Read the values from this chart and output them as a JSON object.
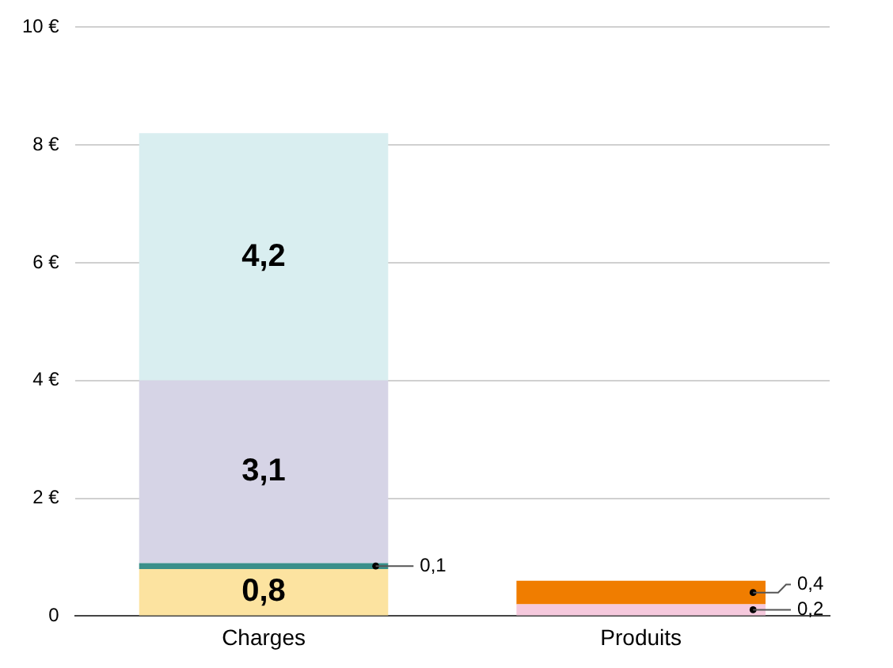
{
  "chart_data": {
    "type": "bar",
    "stacked": true,
    "categories": [
      "Charges",
      "Produits"
    ],
    "series": [
      {
        "color": "#fce3a0",
        "values": [
          0.8,
          null
        ],
        "value_labels": [
          "0,8",
          null
        ]
      },
      {
        "color": "#3a8f8a",
        "values": [
          0.1,
          null
        ],
        "value_labels": [
          "0,1",
          null
        ]
      },
      {
        "color": "#d6d4e6",
        "values": [
          3.1,
          null
        ],
        "value_labels": [
          "3,1",
          null
        ]
      },
      {
        "color": "#d9eef0",
        "values": [
          4.2,
          null
        ],
        "value_labels": [
          "4,2",
          null
        ]
      },
      {
        "color": "#f5c9dd",
        "values": [
          null,
          0.2
        ],
        "value_labels": [
          null,
          "0,2"
        ]
      },
      {
        "color": "#f07d00",
        "values": [
          null,
          0.4
        ],
        "value_labels": [
          null,
          "0,4"
        ]
      }
    ],
    "ylim": [
      0,
      10
    ],
    "yticks": [
      {
        "value": 0,
        "label": "0"
      },
      {
        "value": 2,
        "label": "2 €"
      },
      {
        "value": 4,
        "label": "4 €"
      },
      {
        "value": 6,
        "label": "6 €"
      },
      {
        "value": 8,
        "label": "8 €"
      },
      {
        "value": 10,
        "label": "10 €"
      }
    ],
    "grid": "y",
    "legend": false
  }
}
